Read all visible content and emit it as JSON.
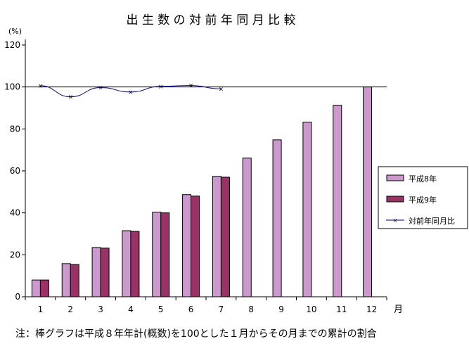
{
  "chart_data": {
    "type": "bar",
    "title": "出 生 数 の 対 前 年 同 月 比 較",
    "ylabel": "(%)",
    "xlabel": "月",
    "ylim": [
      0,
      120
    ],
    "yticks": [
      0,
      20,
      40,
      60,
      80,
      100,
      120
    ],
    "categories": [
      "1",
      "2",
      "3",
      "4",
      "5",
      "6",
      "7",
      "8",
      "9",
      "10",
      "11",
      "12"
    ],
    "series": [
      {
        "name": "平成8年",
        "type": "bar",
        "color": "#cc99cc",
        "values": [
          8.0,
          15.8,
          23.5,
          31.5,
          40.3,
          48.7,
          57.4,
          66.1,
          74.8,
          83.2,
          91.3,
          100
        ]
      },
      {
        "name": "平成9年",
        "type": "bar",
        "color": "#993366",
        "values": [
          8.0,
          15.4,
          23.2,
          31.2,
          40.0,
          48.0,
          57.0,
          null,
          null,
          null,
          null,
          null
        ]
      },
      {
        "name": "対前年同月比",
        "type": "line",
        "color": "#000080",
        "values": [
          100.6,
          95.3,
          99.7,
          97.6,
          100.3,
          100.7,
          99.1,
          null,
          null,
          null,
          null,
          null
        ]
      }
    ],
    "reference_line": 100,
    "legend_position": "right",
    "note": "注：棒グラフは平成８年年計(概数)を100とした１月からその月までの累計の割合"
  }
}
